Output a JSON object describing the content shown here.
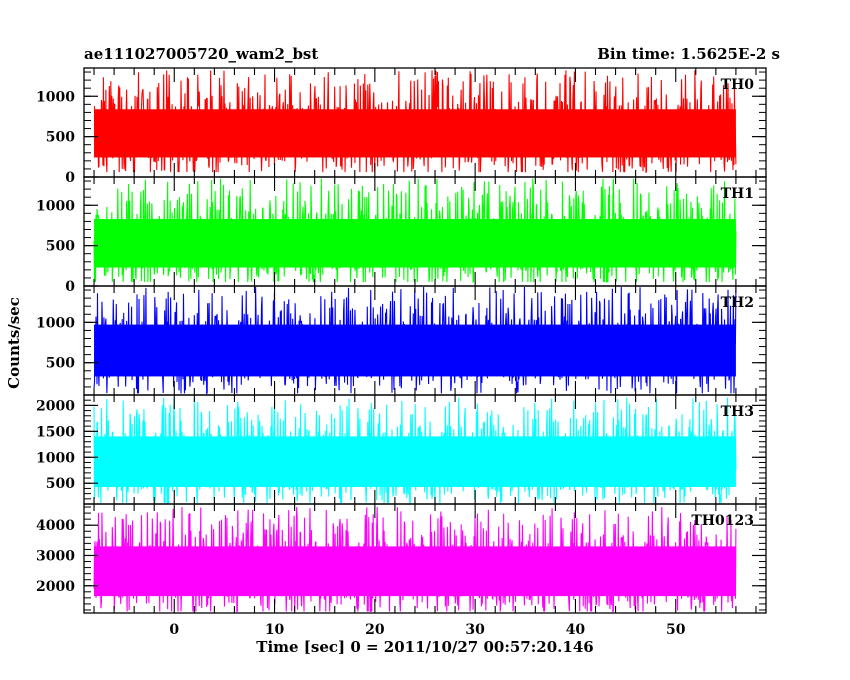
{
  "chart_data": {
    "type": "line",
    "title_left": "ae111027005720_wam2_bst",
    "title_right": "Bin time: 1.5625E-2 s",
    "xlabel": "Time [sec] 0 = 2011/10/27 00:57:20.146",
    "ylabel": "Counts/sec",
    "xlim": [
      -9,
      59
    ],
    "x_ticks": [
      0,
      10,
      20,
      30,
      40,
      50
    ],
    "data_x_range": [
      -8,
      56
    ],
    "panels": [
      {
        "name": "TH0",
        "color": "#ff0000",
        "ylim": [
          0,
          1350
        ],
        "y_ticks": [
          0,
          500,
          1000
        ],
        "mean": 580,
        "low": 60,
        "high": 1320
      },
      {
        "name": "TH1",
        "color": "#00ff00",
        "ylim": [
          0,
          1350
        ],
        "y_ticks": [
          0,
          500,
          1000
        ],
        "mean": 560,
        "low": 50,
        "high": 1330
      },
      {
        "name": "TH2",
        "color": "#0000ff",
        "ylim": [
          100,
          1450
        ],
        "y_ticks": [
          500,
          1000
        ],
        "mean": 720,
        "low": 120,
        "high": 1440
      },
      {
        "name": "TH3",
        "color": "#00ffff",
        "ylim": [
          100,
          2200
        ],
        "y_ticks": [
          500,
          1000,
          1500,
          2000
        ],
        "mean": 1000,
        "low": 120,
        "high": 2150
      },
      {
        "name": "TH0123",
        "color": "#ff00ff",
        "ylim": [
          1100,
          4700
        ],
        "y_ticks": [
          2000,
          3000,
          4000
        ],
        "mean": 2600,
        "low": 1150,
        "high": 4600
      }
    ]
  }
}
